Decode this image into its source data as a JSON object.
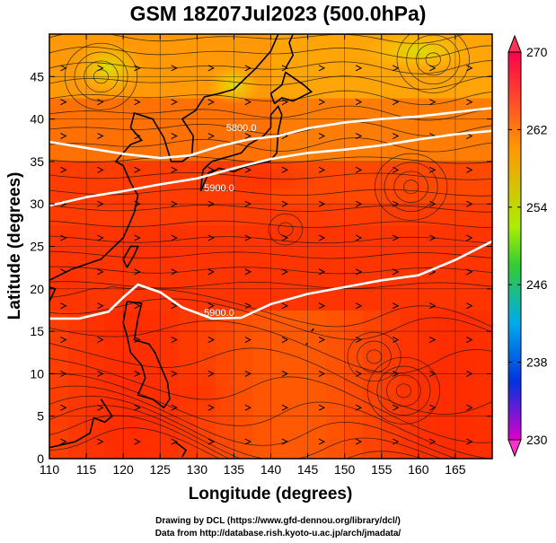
{
  "title": "GSM 18Z07Jul2023 (500.0hPa)",
  "xlabel": "Longitude (degrees)",
  "ylabel": "Latitude (degrees)",
  "credit_drawing": "Drawing by DCL (https://www.gfd-dennou.org/library/dcl/)",
  "credit_data": "Data from http://database.rish.kyoto-u.ac.jp/arch/jmadata/",
  "chart_data": {
    "type": "heatmap",
    "x_ticks": [
      110,
      115,
      120,
      125,
      130,
      135,
      140,
      145,
      150,
      155,
      160,
      165
    ],
    "y_ticks": [
      0,
      5,
      10,
      15,
      20,
      25,
      30,
      35,
      40,
      45
    ],
    "xlim": [
      110,
      170
    ],
    "ylim": [
      0,
      50
    ],
    "colorbar": {
      "ticks": [
        270,
        262,
        254,
        246,
        238,
        230
      ],
      "range": [
        230,
        270
      ],
      "colors": [
        "#ff00cc",
        "#0000ff",
        "#00aaff",
        "#00ff66",
        "#aaff00",
        "#ffff00",
        "#ff9900",
        "#ff3300"
      ]
    },
    "contour_labels": [
      "5800.0",
      "5900.0"
    ],
    "contours": [
      {
        "label": "5800.0",
        "points": [
          [
            110,
            37.3
          ],
          [
            115,
            36.6
          ],
          [
            120,
            35.9
          ],
          [
            125,
            35.4
          ],
          [
            129,
            35.7
          ],
          [
            133,
            36.8
          ],
          [
            137,
            37.6
          ],
          [
            141,
            38.0
          ],
          [
            145,
            38.9
          ],
          [
            150,
            39.6
          ],
          [
            155,
            40.0
          ],
          [
            160,
            40.3
          ],
          [
            165,
            40.8
          ],
          [
            170,
            41.3
          ]
        ]
      },
      {
        "label": "5900.0",
        "points": [
          [
            110,
            29.8
          ],
          [
            115,
            30.8
          ],
          [
            120,
            31.5
          ],
          [
            125,
            32.3
          ],
          [
            130,
            33.0
          ],
          [
            135,
            34.2
          ],
          [
            140,
            35.3
          ],
          [
            145,
            36.0
          ],
          [
            150,
            36.4
          ],
          [
            155,
            36.9
          ],
          [
            160,
            37.6
          ],
          [
            165,
            38.2
          ],
          [
            170,
            38.6
          ]
        ]
      },
      {
        "label": "5900.0",
        "points": [
          [
            110,
            16.5
          ],
          [
            114,
            16.5
          ],
          [
            118,
            17.3
          ],
          [
            120,
            19.0
          ],
          [
            122,
            20.5
          ],
          [
            125,
            19.6
          ],
          [
            128,
            17.8
          ],
          [
            132,
            16.5
          ],
          [
            136,
            16.6
          ],
          [
            140,
            18.2
          ],
          [
            145,
            19.4
          ],
          [
            150,
            20.2
          ],
          [
            155,
            21.0
          ],
          [
            160,
            21.6
          ],
          [
            165,
            23.4
          ],
          [
            170,
            25.6
          ]
        ]
      }
    ]
  }
}
